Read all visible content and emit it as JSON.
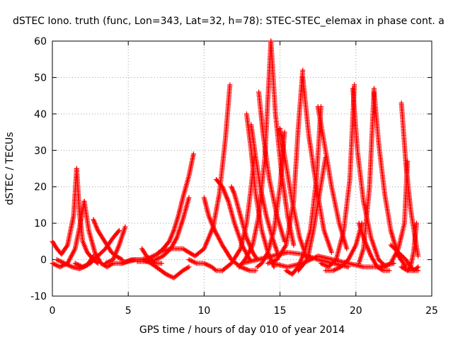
{
  "chart_data": {
    "type": "scatter",
    "title": "dSTEC Iono. truth (func, Lon=343, Lat=32, h=78): STEC-STEC_elemax in phase cont. a",
    "xlabel": "GPS time / hours of day 010 of year 2014",
    "ylabel": "dSTEC  / TECUs",
    "xlim": [
      0,
      25
    ],
    "ylim": [
      -10,
      60
    ],
    "x_ticks": [
      "0",
      "5",
      "10",
      "15",
      "20",
      "25"
    ],
    "y_ticks": [
      "-10",
      "0",
      "10",
      "20",
      "30",
      "40",
      "50",
      "60"
    ],
    "grid": true,
    "marker": "plus",
    "color": "#ff0000",
    "series": [
      {
        "x": [
          0.0,
          0.3,
          0.6,
          1.0,
          1.4,
          1.6
        ],
        "y": [
          5,
          3,
          1.5,
          4,
          12,
          25
        ]
      },
      {
        "x": [
          1.6,
          1.8,
          2.0,
          2.3,
          2.7,
          3.0
        ],
        "y": [
          25,
          12,
          5,
          2,
          0,
          -1
        ]
      },
      {
        "x": [
          0.0,
          0.5,
          1.0,
          1.5,
          1.8,
          2.1
        ],
        "y": [
          -1,
          -2,
          -1,
          3,
          9,
          16
        ]
      },
      {
        "x": [
          2.1,
          2.4,
          2.8,
          3.2,
          3.6,
          4.0
        ],
        "y": [
          16,
          8,
          2,
          -1,
          -2,
          -1
        ]
      },
      {
        "x": [
          0.3,
          0.8,
          1.3,
          1.8,
          2.3,
          2.7
        ],
        "y": [
          0,
          -1,
          -2,
          -2.5,
          -1.5,
          1
        ]
      },
      {
        "x": [
          2.7,
          3.0,
          3.3,
          3.6,
          3.9,
          4.2,
          4.6
        ],
        "y": [
          11,
          8,
          6,
          4,
          2,
          1,
          0
        ]
      },
      {
        "x": [
          1.5,
          2.0,
          2.5,
          3.0,
          3.5,
          4.0,
          4.4
        ],
        "y": [
          -1,
          -2,
          -1,
          1,
          3,
          6,
          8
        ]
      },
      {
        "x": [
          3.5,
          4.0,
          4.4,
          4.8
        ],
        "y": [
          -1,
          0,
          4,
          9
        ]
      },
      {
        "x": [
          4.5,
          5.0,
          5.5,
          6.0
        ],
        "y": [
          -1,
          -0.5,
          0,
          0
        ]
      },
      {
        "x": [
          5.9,
          6.2,
          6.5,
          6.8,
          7.2
        ],
        "y": [
          3,
          1,
          0,
          -1,
          -1
        ]
      },
      {
        "x": [
          4.0,
          4.6,
          5.2,
          5.8,
          6.4,
          6.9,
          7.3,
          7.7,
          8.0,
          8.3,
          8.6,
          9.0,
          9.3
        ],
        "y": [
          -1,
          -1,
          0,
          0,
          0.5,
          1.5,
          3,
          5,
          8,
          12,
          17,
          23,
          29
        ]
      },
      {
        "x": [
          5.6,
          6.2,
          6.8,
          7.3,
          7.8,
          8.2,
          8.6,
          9.0
        ],
        "y": [
          -0.5,
          -0.5,
          0,
          1,
          3,
          6,
          11,
          17
        ]
      },
      {
        "x": [
          6.0,
          6.5,
          7.0,
          7.5,
          8.0,
          8.3,
          8.6,
          9.0
        ],
        "y": [
          0,
          -1,
          -2.5,
          -4,
          -5,
          -4,
          -3,
          -2
        ]
      },
      {
        "x": [
          7.0,
          7.8,
          8.6,
          9.4,
          10.0,
          10.6,
          11.0,
          11.4,
          11.7
        ],
        "y": [
          2,
          3,
          3,
          1,
          3,
          9,
          18,
          33,
          48
        ]
      },
      {
        "x": [
          9.0,
          9.5,
          10.0,
          10.5,
          10.8,
          11.2
        ],
        "y": [
          0,
          -1,
          -1,
          -2,
          -3,
          -3
        ]
      },
      {
        "x": [
          10.0,
          10.3,
          10.7,
          11.2,
          11.8,
          12.4,
          13.0,
          13.4
        ],
        "y": [
          17,
          12,
          8,
          4,
          0,
          -2,
          -3,
          -3
        ]
      },
      {
        "x": [
          10.8,
          11.2,
          11.6,
          12.0,
          12.5,
          13.0
        ],
        "y": [
          22,
          20,
          16,
          10,
          4,
          0
        ]
      },
      {
        "x": [
          11.2,
          11.8,
          12.4,
          12.8,
          13.1,
          13.3
        ],
        "y": [
          -3,
          -1,
          3,
          10,
          20,
          28
        ]
      },
      {
        "x": [
          11.8,
          12.0,
          12.4,
          12.8,
          13.2,
          13.5
        ],
        "y": [
          20,
          18,
          12,
          6,
          2,
          0
        ]
      },
      {
        "x": [
          12.3,
          12.7,
          13.2,
          13.6,
          14.0,
          14.4
        ],
        "y": [
          -2,
          0,
          4,
          12,
          28,
          60
        ]
      },
      {
        "x": [
          12.8,
          13.1,
          13.4,
          13.8,
          14.2,
          14.6
        ],
        "y": [
          40,
          30,
          18,
          8,
          2,
          -2
        ]
      },
      {
        "x": [
          13.1,
          13.4,
          13.7,
          14.1,
          14.5,
          14.9
        ],
        "y": [
          37,
          28,
          20,
          12,
          6,
          1
        ]
      },
      {
        "x": [
          13.5,
          13.8,
          14.2,
          14.6,
          15.0,
          15.3
        ],
        "y": [
          -2,
          -1,
          2,
          8,
          20,
          35
        ]
      },
      {
        "x": [
          13.6,
          13.9,
          14.3,
          14.8,
          15.3
        ],
        "y": [
          46,
          34,
          22,
          12,
          5
        ]
      },
      {
        "x": [
          14.4,
          14.7,
          15.1,
          15.5,
          15.9
        ],
        "y": [
          60,
          40,
          24,
          12,
          4
        ]
      },
      {
        "x": [
          14.2,
          14.8,
          15.4,
          15.9,
          16.2,
          16.5
        ],
        "y": [
          -1,
          0,
          4,
          16,
          36,
          52
        ]
      },
      {
        "x": [
          15.0,
          15.4,
          15.8,
          16.3,
          16.8
        ],
        "y": [
          36,
          26,
          16,
          6,
          0
        ]
      },
      {
        "x": [
          15.4,
          15.8,
          16.2,
          16.6,
          17.0,
          17.4,
          17.7
        ],
        "y": [
          -3,
          -4,
          -2,
          2,
          8,
          22,
          42
        ]
      },
      {
        "x": [
          16.2,
          16.8,
          17.2,
          17.6,
          18.0
        ],
        "y": [
          -3,
          0,
          8,
          18,
          28
        ]
      },
      {
        "x": [
          16.5,
          16.9,
          17.4,
          17.9,
          18.4
        ],
        "y": [
          50,
          34,
          20,
          8,
          2
        ]
      },
      {
        "x": [
          17.5,
          18.0,
          18.4,
          18.9,
          19.4
        ],
        "y": [
          42,
          30,
          20,
          10,
          3
        ]
      },
      {
        "x": [
          17.7,
          18.2,
          18.7,
          19.2,
          19.6,
          19.9
        ],
        "y": [
          -1,
          -2,
          0,
          8,
          22,
          48
        ]
      },
      {
        "x": [
          18.0,
          18.5,
          19.0,
          19.5,
          20.0,
          20.4
        ],
        "y": [
          -3,
          -3,
          -2,
          0,
          4,
          10
        ]
      },
      {
        "x": [
          19.8,
          20.1,
          20.5,
          21.0,
          21.5,
          22.0
        ],
        "y": [
          47,
          30,
          16,
          6,
          0,
          -2
        ]
      },
      {
        "x": [
          20.2,
          20.6,
          21.0,
          21.4,
          21.8,
          22.2
        ],
        "y": [
          10,
          5,
          1,
          -2,
          -3,
          -3
        ]
      },
      {
        "x": [
          20.2,
          20.5,
          20.9,
          21.2
        ],
        "y": [
          -1,
          3,
          20,
          47
        ]
      },
      {
        "x": [
          21.2,
          21.5,
          21.9,
          22.3,
          22.8,
          23.3
        ],
        "y": [
          46,
          32,
          18,
          8,
          1,
          -2
        ]
      },
      {
        "x": [
          21.8,
          22.3,
          22.8,
          23.2,
          23.4
        ],
        "y": [
          -2,
          -1,
          3,
          10,
          27
        ]
      },
      {
        "x": [
          23.0,
          23.3,
          23.6,
          23.9,
          24.1
        ],
        "y": [
          43,
          26,
          14,
          6,
          1
        ]
      },
      {
        "x": [
          22.3,
          22.8,
          23.3,
          23.6,
          23.9,
          24.1
        ],
        "y": [
          4,
          2,
          0,
          -2,
          -3,
          -3
        ]
      },
      {
        "x": [
          23.4,
          23.6,
          23.8,
          24.0
        ],
        "y": [
          -3,
          -2,
          2,
          10
        ]
      },
      {
        "x": [
          23.0,
          23.4,
          23.8,
          24.1
        ],
        "y": [
          -2,
          -3,
          -3,
          -2
        ]
      },
      {
        "x": [
          12.5,
          13.5,
          14.5,
          15.5,
          16.5,
          17.5,
          18.5,
          19.5
        ],
        "y": [
          -1,
          0,
          1,
          2,
          1.5,
          0,
          -1,
          -2
        ]
      },
      {
        "x": [
          14.5,
          15.5,
          16.5,
          17.5,
          18.5,
          19.5,
          20.5,
          21.5,
          22.5
        ],
        "y": [
          -1,
          -2,
          -1,
          1,
          0,
          -1,
          -2,
          -2,
          -1
        ]
      }
    ]
  }
}
